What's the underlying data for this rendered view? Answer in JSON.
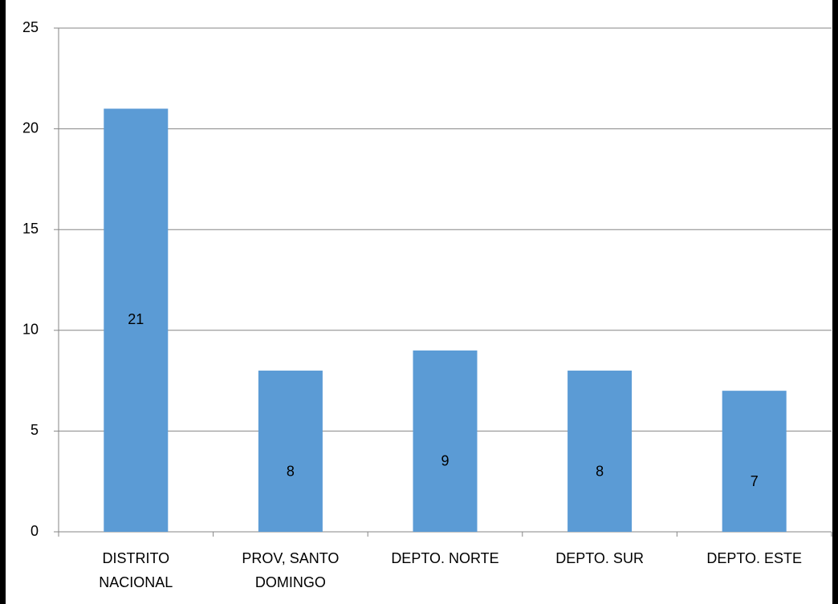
{
  "chart_data": {
    "type": "bar",
    "categories": [
      "DISTRITO NACIONAL",
      "PROV, SANTO DOMINGO",
      "DEPTO. NORTE",
      "DEPTO. SUR",
      "DEPTO. ESTE"
    ],
    "values": [
      21,
      8,
      9,
      8,
      7
    ],
    "color": "#5b9bd5",
    "ylim": [
      0,
      25
    ],
    "yticks": [
      0,
      5,
      10,
      15,
      20,
      25
    ],
    "grid": true
  }
}
